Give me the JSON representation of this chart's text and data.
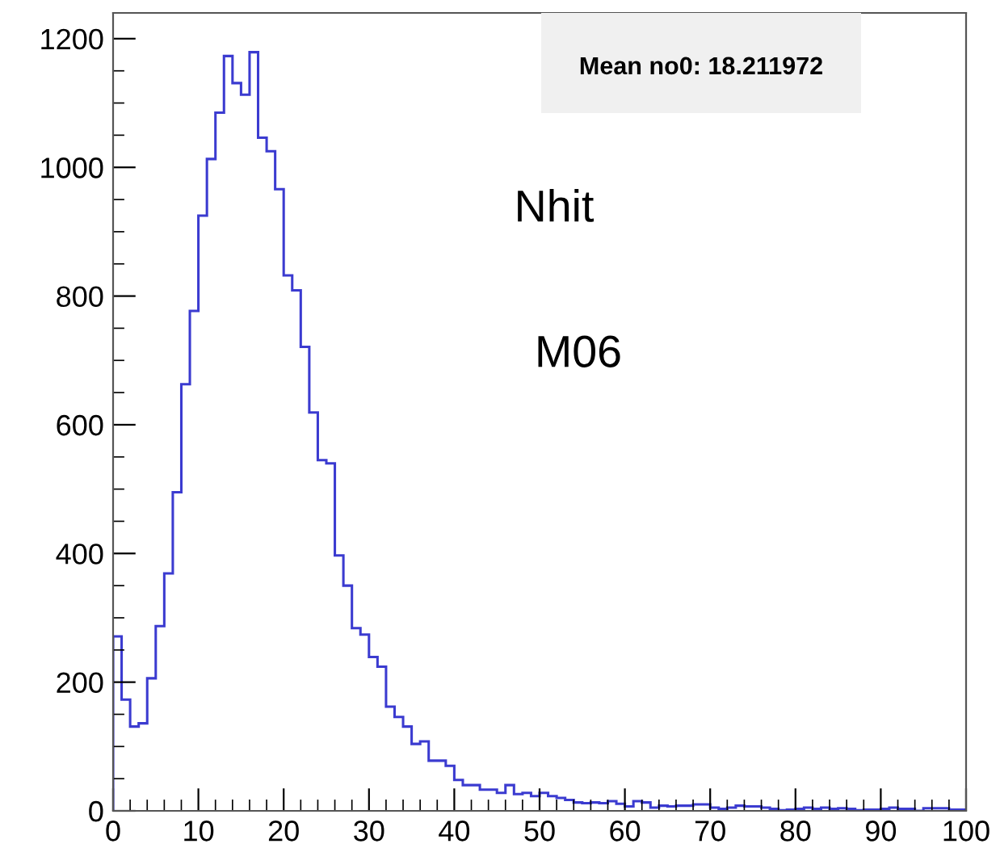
{
  "chart_data": {
    "type": "histogram",
    "bins": [
      0,
      1,
      2,
      3,
      4,
      5,
      6,
      7,
      8,
      9,
      10,
      11,
      12,
      13,
      14,
      15,
      16,
      17,
      18,
      19,
      20,
      21,
      22,
      23,
      24,
      25,
      26,
      27,
      28,
      29,
      30,
      31,
      32,
      33,
      34,
      35,
      36,
      37,
      38,
      39,
      40,
      41,
      42,
      43,
      44,
      45,
      46,
      47,
      48,
      49,
      50,
      51,
      52,
      53,
      54,
      55,
      56,
      57,
      58,
      59,
      60,
      61,
      62,
      63,
      64,
      65,
      66,
      67,
      68,
      69,
      70,
      71,
      72,
      73,
      74,
      75,
      76,
      77,
      78,
      79,
      80,
      81,
      82,
      83,
      84,
      85,
      86,
      87,
      88,
      89,
      90,
      91,
      92,
      93,
      94,
      95,
      96,
      97,
      98,
      99,
      100
    ],
    "values": [
      271,
      173,
      131,
      136,
      206,
      287,
      369,
      495,
      663,
      777,
      925,
      1013,
      1085,
      1173,
      1131,
      1113,
      1179,
      1046,
      1025,
      966,
      832,
      809,
      721,
      619,
      545,
      540,
      397,
      350,
      284,
      274,
      239,
      224,
      162,
      146,
      131,
      104,
      108,
      78,
      78,
      70,
      48,
      40,
      40,
      33,
      33,
      28,
      40,
      26,
      28,
      23,
      28,
      23,
      20,
      17,
      13,
      12,
      13,
      12,
      15,
      11,
      7,
      15,
      13,
      5,
      8,
      7,
      8,
      8,
      10,
      10,
      5,
      3,
      5,
      8,
      7,
      7,
      5,
      3,
      1,
      2,
      3,
      5,
      3,
      5,
      3,
      4,
      3,
      1,
      2,
      2,
      3,
      5,
      3,
      3,
      0,
      4,
      4,
      4,
      2,
      2
    ],
    "color": "#3b3bd0",
    "xlim": [
      0,
      100
    ],
    "xticks": [
      0,
      10,
      20,
      30,
      40,
      50,
      60,
      70,
      80,
      90,
      100
    ],
    "ylim": [
      0,
      1240
    ],
    "yticks": [
      0,
      200,
      400,
      600,
      800,
      1000,
      1200
    ],
    "grid": false,
    "annotations": [
      "Mean no0: 18.211972",
      "Nhit",
      "M06"
    ]
  }
}
